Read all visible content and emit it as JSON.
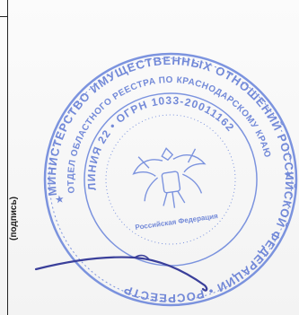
{
  "signature_label": "(подпись)",
  "seal": {
    "outer_text": "МИНИСТЕРСТВО ИМУЩЕСТВЕННЫХ ОТНОШЕНИЙ РОССИЙСКОЙ ФЕДЕРАЦИИ • РОСРЕЕСТР",
    "middle_text": "ОТДЕЛ ОБЛАСТНОГО РЕЕСТРА ПО КРАСНОДАРСКОМУ КРАЮ",
    "inner_text": "ЛИНИЯ 22 • ОГРН 1033-20011162",
    "center_text": "Российская Федерация",
    "ink_color": "#4e6bd0"
  },
  "signature_ink_color": "#3a3f9a"
}
